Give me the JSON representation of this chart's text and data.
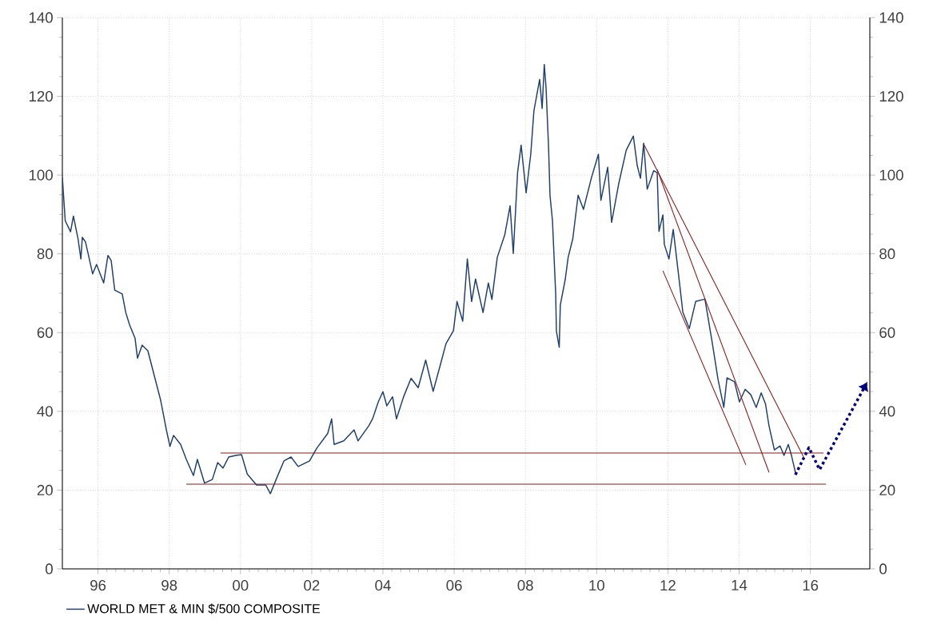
{
  "chart_data": {
    "type": "line",
    "xlim": [
      1995,
      2017.67
    ],
    "ylim": [
      0,
      140
    ],
    "y2lim": [
      0,
      140
    ],
    "xticks": [
      {
        "value": 1996,
        "label": "96"
      },
      {
        "value": 1998,
        "label": "98"
      },
      {
        "value": 2000,
        "label": "00"
      },
      {
        "value": 2002,
        "label": "02"
      },
      {
        "value": 2004,
        "label": "04"
      },
      {
        "value": 2006,
        "label": "06"
      },
      {
        "value": 2008,
        "label": "08"
      },
      {
        "value": 2010,
        "label": "10"
      },
      {
        "value": 2012,
        "label": "12"
      },
      {
        "value": 2014,
        "label": "14"
      },
      {
        "value": 2016,
        "label": "16"
      }
    ],
    "yticks": [
      0,
      20,
      40,
      60,
      80,
      100,
      120,
      140
    ],
    "y2ticks": [
      0,
      20,
      40,
      60,
      80,
      100,
      120,
      140
    ],
    "grid": true,
    "legend": "bottom",
    "series": [
      {
        "name": "WORLD MET & MIN $/500 COMPOSITE",
        "color": "#1f3f6e",
        "line_style": "solid",
        "x": [
          1995.0,
          1995.08,
          1995.23,
          1995.31,
          1995.44,
          1995.52,
          1995.56,
          1995.65,
          1995.85,
          1995.96,
          1996.16,
          1996.28,
          1996.37,
          1996.47,
          1996.68,
          1996.78,
          1996.89,
          1997.04,
          1997.11,
          1997.24,
          1997.4,
          1997.6,
          1997.76,
          1997.92,
          1998.02,
          1998.12,
          1998.32,
          1998.48,
          1998.68,
          1998.79,
          1998.99,
          1999.21,
          1999.36,
          1999.51,
          1999.67,
          1999.87,
          2000.03,
          2000.19,
          2000.45,
          2000.71,
          2000.84,
          2001.02,
          2001.22,
          2001.42,
          2001.62,
          2001.94,
          2002.14,
          2002.45,
          2002.56,
          2002.63,
          2002.9,
          2003.19,
          2003.3,
          2003.6,
          2003.71,
          2003.87,
          2004.0,
          2004.11,
          2004.27,
          2004.38,
          2004.58,
          2004.79,
          2004.99,
          2005.2,
          2005.41,
          2005.62,
          2005.77,
          2005.98,
          2006.08,
          2006.24,
          2006.37,
          2006.49,
          2006.6,
          2006.81,
          2006.96,
          2007.06,
          2007.21,
          2007.42,
          2007.57,
          2007.66,
          2007.78,
          2007.88,
          2008.02,
          2008.15,
          2008.24,
          2008.4,
          2008.47,
          2008.53,
          2008.58,
          2008.65,
          2008.69,
          2008.76,
          2008.85,
          2008.87,
          2008.95,
          2008.98,
          2009.12,
          2009.2,
          2009.33,
          2009.48,
          2009.63,
          2009.85,
          2010.05,
          2010.12,
          2010.31,
          2010.42,
          2010.62,
          2010.83,
          2011.03,
          2011.14,
          2011.23,
          2011.32,
          2011.42,
          2011.6,
          2011.7,
          2011.75,
          2011.86,
          2011.9,
          2012.03,
          2012.15,
          2012.32,
          2012.42,
          2012.6,
          2012.78,
          2013.04,
          2013.25,
          2013.41,
          2013.57,
          2013.66,
          2013.87,
          2014.01,
          2014.17,
          2014.33,
          2014.48,
          2014.62,
          2014.74,
          2014.84,
          2014.99,
          2015.15,
          2015.26,
          2015.38,
          2015.47,
          2015.59
        ],
        "values": [
          99.4,
          88.4,
          85.6,
          89.6,
          83.8,
          78.7,
          84.2,
          83.0,
          74.9,
          77.3,
          72.6,
          79.6,
          78.3,
          70.8,
          69.8,
          65.1,
          61.9,
          58.6,
          53.5,
          56.8,
          55.4,
          48.4,
          42.8,
          35.3,
          31.1,
          33.9,
          31.6,
          27.8,
          23.7,
          27.8,
          21.8,
          22.7,
          27.0,
          25.6,
          28.4,
          28.8,
          29.0,
          24.1,
          21.3,
          21.3,
          19.1,
          23.1,
          27.4,
          28.4,
          26.0,
          27.4,
          30.6,
          34.4,
          38.1,
          31.6,
          32.5,
          35.3,
          32.5,
          36.3,
          38.1,
          42.4,
          45.0,
          41.4,
          43.7,
          38.1,
          43.7,
          48.4,
          46.0,
          53.0,
          45.1,
          52.1,
          57.2,
          60.5,
          67.9,
          62.9,
          78.7,
          67.9,
          73.6,
          65.1,
          72.6,
          68.4,
          79.1,
          84.8,
          92.2,
          80.1,
          100.6,
          107.6,
          95.5,
          105.3,
          116.4,
          124.3,
          116.9,
          128.1,
          122.1,
          107.1,
          94.9,
          88.4,
          69.8,
          60.4,
          56.3,
          67.0,
          73.6,
          79.1,
          83.8,
          94.9,
          91.3,
          99.2,
          105.3,
          93.6,
          102.0,
          88.0,
          97.8,
          106.3,
          109.9,
          102.4,
          99.2,
          108.1,
          96.4,
          101.1,
          100.6,
          85.7,
          89.9,
          82.4,
          78.7,
          86.2,
          73.1,
          65.2,
          61.0,
          67.9,
          68.5,
          57.2,
          48.0,
          41.0,
          48.5,
          47.5,
          42.4,
          45.6,
          44.2,
          41.0,
          44.7,
          41.9,
          36.3,
          30.2,
          31.2,
          28.8,
          31.6,
          28.8,
          24.1
        ]
      },
      {
        "type": "line",
        "color": "#8b1a1a",
        "line_style": "solid",
        "x": [
          2011.32,
          2015.81
        ],
        "values": [
          107.9,
          28.4
        ]
      },
      {
        "type": "line",
        "color": "#8b1a1a",
        "line_style": "solid",
        "x": [
          2011.7,
          2014.84
        ],
        "values": [
          101.4,
          24.5
        ]
      },
      {
        "type": "line",
        "color": "#8b1a1a",
        "line_style": "solid",
        "x": [
          2011.86,
          2014.19
        ],
        "values": [
          75.7,
          26.4
        ]
      },
      {
        "type": "line",
        "color": "#8b1a1a",
        "line_style": "solid",
        "x": [
          1999.44,
          2016.37
        ],
        "values": [
          29.4,
          29.4
        ]
      },
      {
        "type": "line",
        "color": "#8b1a1a",
        "line_style": "solid",
        "x": [
          1998.48,
          2016.44
        ],
        "values": [
          21.5,
          21.5
        ]
      },
      {
        "type": "line",
        "color": "#000080",
        "line_style": "dotted",
        "x": [
          2015.58,
          2015.96,
          2016.26,
          2017.6
        ],
        "values": [
          23.9,
          30.8,
          25.2,
          47.5
        ]
      }
    ]
  }
}
